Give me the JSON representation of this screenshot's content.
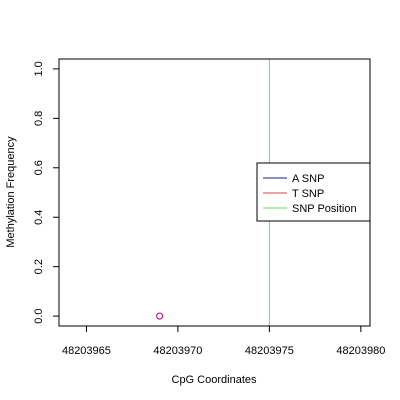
{
  "chart_data": {
    "type": "scatter",
    "title": "",
    "xlabel": "CpG Coordinates",
    "ylabel": "Methylation Frequency",
    "xlim": [
      48203963.5,
      48203980.5
    ],
    "ylim": [
      -0.04,
      1.04
    ],
    "x_ticks": [
      {
        "value": 48203965,
        "label": "48203965"
      },
      {
        "value": 48203970,
        "label": "48203970"
      },
      {
        "value": 48203975,
        "label": "48203975"
      },
      {
        "value": 48203980,
        "label": "48203980"
      }
    ],
    "y_ticks": [
      {
        "value": 0.0,
        "label": "0.0"
      },
      {
        "value": 0.2,
        "label": "0.2"
      },
      {
        "value": 0.4,
        "label": "0.4"
      },
      {
        "value": 0.6,
        "label": "0.6"
      },
      {
        "value": 0.8,
        "label": "0.8"
      },
      {
        "value": 1.0,
        "label": "1.0"
      }
    ],
    "points": [
      {
        "x": 48203969,
        "y": 0.0,
        "color": "#cc0066",
        "marker": "open-circle"
      }
    ],
    "snp_position": 48203975,
    "grid": false,
    "legend": {
      "placement": "right",
      "entries": [
        {
          "label": "A SNP",
          "color": "#1a1a99"
        },
        {
          "label": "T SNP",
          "color": "#e04040"
        },
        {
          "label": "SNP Position",
          "color": "#66dd66"
        }
      ]
    }
  }
}
